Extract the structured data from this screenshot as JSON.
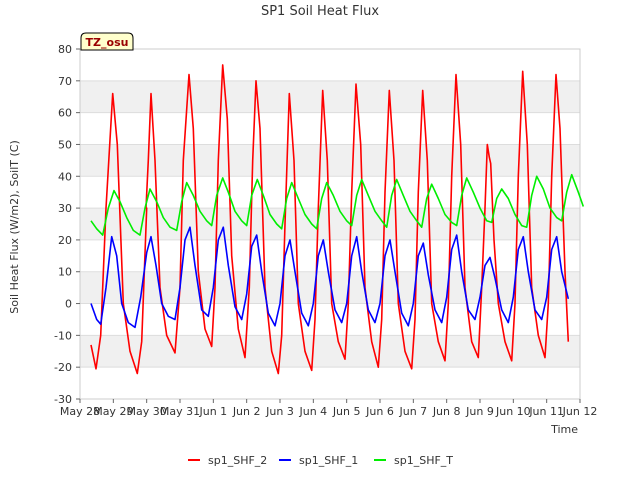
{
  "chart_data": {
    "type": "line",
    "title": "SP1 Soil Heat Flux",
    "xlabel": "Time",
    "ylabel": "Soil Heat Flux (W/m2), SoilT (C)",
    "annotation": "TZ_osu",
    "xlim": [
      0,
      15
    ],
    "ylim": [
      -30,
      80
    ],
    "yticks": [
      -30,
      -20,
      -10,
      0,
      10,
      20,
      30,
      40,
      50,
      60,
      70,
      80
    ],
    "xtick_positions": [
      0,
      1,
      2,
      3,
      4,
      5,
      6,
      7,
      8,
      9,
      10,
      11,
      12,
      13,
      14,
      15
    ],
    "xtick_labels": [
      "May 28",
      "May 29",
      "May 30",
      "May 31",
      "Jun 1",
      "Jun 2",
      "Jun 3",
      "Jun 4",
      "Jun 5",
      "Jun 6",
      "Jun 7",
      "Jun 8",
      "Jun 9",
      "Jun 10",
      "Jun 11",
      "Jun 12"
    ],
    "grid": true,
    "band_shading": true,
    "legend_position": "bottom-center",
    "series": [
      {
        "name": "sp1_SHF_2",
        "color": "#ff0000",
        "points": [
          [
            0.33,
            -13
          ],
          [
            0.48,
            -20.5
          ],
          [
            0.62,
            -10
          ],
          [
            0.78,
            30
          ],
          [
            0.98,
            66
          ],
          [
            1.12,
            50
          ],
          [
            1.3,
            0
          ],
          [
            1.5,
            -15
          ],
          [
            1.72,
            -22
          ],
          [
            1.85,
            -12
          ],
          [
            2.0,
            30
          ],
          [
            2.0,
            30
          ],
          [
            2.0,
            30
          ],
          [
            1.98,
            30
          ],
          [
            2.05,
            45
          ],
          [
            2.13,
            66
          ],
          [
            2.25,
            45
          ],
          [
            2.4,
            5
          ],
          [
            2.6,
            -10
          ],
          [
            2.85,
            -15.5
          ],
          [
            3.0,
            5
          ],
          [
            3.1,
            45
          ],
          [
            3.27,
            72
          ],
          [
            3.4,
            55
          ],
          [
            3.55,
            10
          ],
          [
            3.75,
            -8
          ],
          [
            3.95,
            -13.5
          ],
          [
            4.05,
            5
          ],
          [
            4.15,
            45
          ],
          [
            4.28,
            75
          ],
          [
            4.42,
            58
          ],
          [
            4.55,
            15
          ],
          [
            4.75,
            -8
          ],
          [
            4.95,
            -17
          ],
          [
            5.08,
            5
          ],
          [
            5.18,
            45
          ],
          [
            5.28,
            70
          ],
          [
            5.4,
            55
          ],
          [
            5.55,
            5
          ],
          [
            5.75,
            -15
          ],
          [
            5.95,
            -22
          ],
          [
            6.05,
            -10
          ],
          [
            6.15,
            25
          ],
          [
            6.28,
            66
          ],
          [
            6.42,
            45
          ],
          [
            6.55,
            0
          ],
          [
            6.75,
            -15
          ],
          [
            6.95,
            -21
          ],
          [
            7.05,
            -5
          ],
          [
            7.15,
            30
          ],
          [
            7.28,
            67
          ],
          [
            7.42,
            45
          ],
          [
            7.55,
            0
          ],
          [
            7.75,
            -12
          ],
          [
            7.95,
            -17.5
          ],
          [
            8.05,
            0
          ],
          [
            8.15,
            35
          ],
          [
            8.28,
            69
          ],
          [
            8.42,
            50
          ],
          [
            8.55,
            5
          ],
          [
            8.75,
            -12
          ],
          [
            8.95,
            -20
          ],
          [
            9.05,
            -5
          ],
          [
            9.15,
            35
          ],
          [
            9.28,
            67
          ],
          [
            9.42,
            45
          ],
          [
            9.55,
            0
          ],
          [
            9.75,
            -15
          ],
          [
            9.95,
            -20.5
          ],
          [
            10.05,
            -5
          ],
          [
            10.15,
            35
          ],
          [
            10.28,
            67
          ],
          [
            10.42,
            45
          ],
          [
            10.55,
            0
          ],
          [
            10.75,
            -12
          ],
          [
            10.95,
            -18
          ],
          [
            11.05,
            0
          ],
          [
            11.15,
            40
          ],
          [
            11.28,
            72
          ],
          [
            11.42,
            50
          ],
          [
            11.55,
            5
          ],
          [
            11.75,
            -12
          ],
          [
            11.95,
            -17
          ],
          [
            12.05,
            5
          ],
          [
            12.15,
            30
          ],
          [
            12.22,
            50
          ],
          [
            12.28,
            46
          ],
          [
            12.32,
            44
          ],
          [
            12.42,
            20
          ],
          [
            12.55,
            0
          ],
          [
            12.75,
            -12
          ],
          [
            12.95,
            -18
          ],
          [
            13.05,
            0
          ],
          [
            13.15,
            40
          ],
          [
            13.28,
            73
          ],
          [
            13.42,
            50
          ],
          [
            13.55,
            5
          ],
          [
            13.75,
            -10
          ],
          [
            13.95,
            -17
          ],
          [
            14.05,
            0
          ],
          [
            14.15,
            40
          ],
          [
            14.28,
            72
          ],
          [
            14.4,
            55
          ],
          [
            14.55,
            10
          ],
          [
            14.65,
            -12
          ]
        ]
      },
      {
        "name": "sp1_SHF_1",
        "color": "#0000ff",
        "points": [
          [
            0.33,
            0
          ],
          [
            0.5,
            -5
          ],
          [
            0.62,
            -6.5
          ],
          [
            0.78,
            5
          ],
          [
            0.95,
            21
          ],
          [
            1.1,
            15
          ],
          [
            1.25,
            0
          ],
          [
            1.45,
            -6
          ],
          [
            1.65,
            -7.5
          ],
          [
            1.82,
            2
          ],
          [
            2.0,
            16
          ],
          [
            2.13,
            21
          ],
          [
            2.28,
            12
          ],
          [
            2.45,
            0
          ],
          [
            2.65,
            -4
          ],
          [
            2.85,
            -5
          ],
          [
            3.0,
            5
          ],
          [
            3.15,
            20
          ],
          [
            3.3,
            24
          ],
          [
            3.45,
            12
          ],
          [
            3.65,
            -2
          ],
          [
            3.85,
            -4
          ],
          [
            4.0,
            5
          ],
          [
            4.15,
            20
          ],
          [
            4.3,
            24
          ],
          [
            4.45,
            12
          ],
          [
            4.65,
            -1
          ],
          [
            4.85,
            -5
          ],
          [
            5.0,
            3
          ],
          [
            5.15,
            18
          ],
          [
            5.3,
            21.5
          ],
          [
            5.45,
            10
          ],
          [
            5.65,
            -3
          ],
          [
            5.85,
            -7
          ],
          [
            6.0,
            0
          ],
          [
            6.15,
            15
          ],
          [
            6.3,
            20
          ],
          [
            6.45,
            10
          ],
          [
            6.65,
            -3
          ],
          [
            6.85,
            -7
          ],
          [
            7.0,
            0
          ],
          [
            7.15,
            15
          ],
          [
            7.3,
            20
          ],
          [
            7.45,
            10
          ],
          [
            7.65,
            -2
          ],
          [
            7.85,
            -6
          ],
          [
            8.0,
            0
          ],
          [
            8.15,
            15
          ],
          [
            8.3,
            21
          ],
          [
            8.45,
            10
          ],
          [
            8.65,
            -2
          ],
          [
            8.85,
            -6
          ],
          [
            9.0,
            0
          ],
          [
            9.15,
            15
          ],
          [
            9.3,
            20
          ],
          [
            9.45,
            10
          ],
          [
            9.65,
            -3
          ],
          [
            9.85,
            -7
          ],
          [
            10.0,
            0
          ],
          [
            10.15,
            15
          ],
          [
            10.3,
            19
          ],
          [
            10.45,
            9
          ],
          [
            10.65,
            -2
          ],
          [
            10.85,
            -6
          ],
          [
            11.0,
            2
          ],
          [
            11.15,
            17
          ],
          [
            11.3,
            21.5
          ],
          [
            11.45,
            10
          ],
          [
            11.65,
            -2
          ],
          [
            11.85,
            -5
          ],
          [
            12.0,
            2
          ],
          [
            12.15,
            12
          ],
          [
            12.3,
            14.5
          ],
          [
            12.45,
            8
          ],
          [
            12.65,
            -2
          ],
          [
            12.85,
            -6
          ],
          [
            13.0,
            2
          ],
          [
            13.15,
            17
          ],
          [
            13.3,
            21
          ],
          [
            13.45,
            10
          ],
          [
            13.65,
            -2
          ],
          [
            13.85,
            -5
          ],
          [
            14.0,
            2
          ],
          [
            14.15,
            17
          ],
          [
            14.3,
            21
          ],
          [
            14.45,
            10
          ],
          [
            14.65,
            1.5
          ]
        ]
      },
      {
        "name": "sp1_SHF_T",
        "color": "#00ee00",
        "points": [
          [
            0.33,
            26
          ],
          [
            0.5,
            23.5
          ],
          [
            0.68,
            21.5
          ],
          [
            0.85,
            30
          ],
          [
            1.02,
            35.5
          ],
          [
            1.2,
            32
          ],
          [
            1.4,
            27
          ],
          [
            1.6,
            23
          ],
          [
            1.8,
            21.5
          ],
          [
            1.95,
            30
          ],
          [
            2.1,
            36
          ],
          [
            2.3,
            32
          ],
          [
            2.5,
            27
          ],
          [
            2.7,
            24
          ],
          [
            2.9,
            23
          ],
          [
            3.05,
            32
          ],
          [
            3.2,
            38
          ],
          [
            3.4,
            34
          ],
          [
            3.6,
            29
          ],
          [
            3.8,
            26
          ],
          [
            3.95,
            24.5
          ],
          [
            4.1,
            34
          ],
          [
            4.28,
            39.5
          ],
          [
            4.45,
            35
          ],
          [
            4.65,
            29
          ],
          [
            4.85,
            26
          ],
          [
            5.0,
            24.5
          ],
          [
            5.15,
            34
          ],
          [
            5.32,
            39
          ],
          [
            5.5,
            34
          ],
          [
            5.7,
            28
          ],
          [
            5.9,
            25
          ],
          [
            6.05,
            23.5
          ],
          [
            6.2,
            33
          ],
          [
            6.35,
            38
          ],
          [
            6.55,
            33
          ],
          [
            6.75,
            28
          ],
          [
            6.95,
            25
          ],
          [
            7.1,
            23.5
          ],
          [
            7.25,
            33
          ],
          [
            7.4,
            38
          ],
          [
            7.6,
            34
          ],
          [
            7.8,
            29
          ],
          [
            8.0,
            26
          ],
          [
            8.15,
            24.5
          ],
          [
            8.3,
            34
          ],
          [
            8.45,
            39
          ],
          [
            8.65,
            34
          ],
          [
            8.85,
            29
          ],
          [
            9.05,
            26
          ],
          [
            9.2,
            24
          ],
          [
            9.35,
            34
          ],
          [
            9.5,
            39
          ],
          [
            9.7,
            34
          ],
          [
            9.9,
            29
          ],
          [
            10.1,
            26
          ],
          [
            10.25,
            24
          ],
          [
            10.4,
            33
          ],
          [
            10.55,
            37.5
          ],
          [
            10.75,
            33
          ],
          [
            10.95,
            28
          ],
          [
            11.15,
            25.5
          ],
          [
            11.3,
            24.5
          ],
          [
            11.45,
            34
          ],
          [
            11.6,
            39.5
          ],
          [
            11.8,
            35
          ],
          [
            12.0,
            30
          ],
          [
            12.2,
            26
          ],
          [
            12.35,
            25.5
          ],
          [
            12.5,
            33
          ],
          [
            12.65,
            36
          ],
          [
            12.85,
            33
          ],
          [
            13.05,
            28
          ],
          [
            13.25,
            24.5
          ],
          [
            13.4,
            24
          ],
          [
            13.55,
            34
          ],
          [
            13.7,
            40
          ],
          [
            13.9,
            36
          ],
          [
            14.1,
            30
          ],
          [
            14.3,
            27
          ],
          [
            14.45,
            26
          ],
          [
            14.6,
            35
          ],
          [
            14.75,
            40.5
          ],
          [
            14.95,
            35
          ],
          [
            15.1,
            30.5
          ]
        ]
      }
    ]
  }
}
